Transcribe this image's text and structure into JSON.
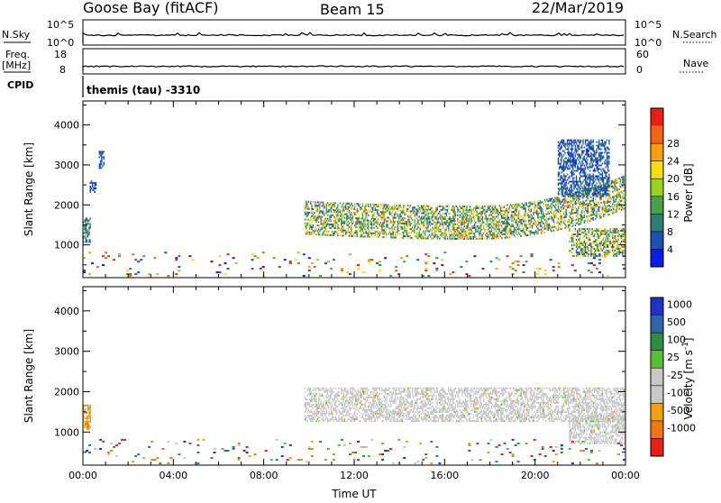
{
  "header": {
    "site": "Goose Bay (fitACF)",
    "beam": "Beam 15",
    "date": "22/Mar/2019"
  },
  "top_panels": {
    "nsky_label": "N.Sky",
    "nsky_ticks": [
      "10^5",
      "10^0"
    ],
    "nsearch_label": "N.Search",
    "nsearch_ticks": [
      "10^5",
      "10^0"
    ],
    "freq_label_1": "Freq.",
    "freq_label_2": "[MHz]",
    "freq_ticks": [
      "18",
      "8"
    ],
    "nave_label": "Nave",
    "nave_ticks": [
      "60",
      "0"
    ],
    "cpid_label": "CPID",
    "cpid_value": "themis (tau)  -3310"
  },
  "chart_data": [
    {
      "type": "heatmap",
      "panel": "power",
      "title": "",
      "xlabel": "",
      "ylabel": "Slant Range [km]",
      "x_unit": "hours UT",
      "xlim": [
        0,
        24
      ],
      "ylim": [
        180,
        4600
      ],
      "yticks": [
        1000,
        2000,
        3000,
        4000
      ],
      "colorbar": {
        "label": "Power [dB]",
        "ticks": [
          "4",
          "8",
          "12",
          "16",
          "20",
          "24",
          "28"
        ],
        "colors": [
          "#0a1ee6",
          "#1e50b4",
          "#2e7d6e",
          "#4aa04a",
          "#9ad21e",
          "#f5dc14",
          "#f5a014",
          "#f06414",
          "#e61e14"
        ]
      },
      "echo_regions": [
        {
          "t_start": 0.0,
          "t_end": 0.35,
          "r_min": 1050,
          "r_max": 1650,
          "level": "mid"
        },
        {
          "t_start": 0.3,
          "t_end": 0.55,
          "r_min": 2300,
          "r_max": 2600,
          "level": "low"
        },
        {
          "t_start": 0.7,
          "t_end": 0.95,
          "r_min": 2900,
          "r_max": 3350,
          "level": "low"
        },
        {
          "t_start": 9.8,
          "t_end": 24.0,
          "r_min": 1250,
          "r_max": 2100,
          "level": "high",
          "note": "main band"
        },
        {
          "t_start": 21.5,
          "t_end": 24.0,
          "r_min": 700,
          "r_max": 1400,
          "level": "high"
        },
        {
          "t_start": 21.0,
          "t_end": 23.3,
          "r_min": 2200,
          "r_max": 3600,
          "level": "low"
        },
        {
          "t_start": 0.0,
          "t_end": 24.0,
          "r_min": 200,
          "r_max": 800,
          "level": "sparse"
        }
      ]
    },
    {
      "type": "heatmap",
      "panel": "velocity",
      "title": "",
      "xlabel": "Time UT",
      "ylabel": "Slant Range [km]",
      "x_unit": "hours UT",
      "xlim": [
        0,
        24
      ],
      "ylim": [
        180,
        4600
      ],
      "yticks": [
        1000,
        2000,
        3000,
        4000
      ],
      "xticks": [
        "00:00",
        "04:00",
        "08:00",
        "12:00",
        "16:00",
        "20:00",
        "00:00"
      ],
      "colorbar": {
        "label": "Velocity [m s^-1]",
        "ticks": [
          "1000",
          "500",
          "100",
          "25",
          "-25",
          "-100",
          "-500",
          "-1000"
        ],
        "colors": [
          "#1e32c8",
          "#3264aa",
          "#2e8c46",
          "#5abe32",
          "#c8c8c8",
          "#c8c8c8",
          "#f5a014",
          "#f07814",
          "#e61e14"
        ]
      },
      "echo_regions": [
        {
          "t_start": 0.0,
          "t_end": 0.35,
          "r_min": 1050,
          "r_max": 1650,
          "vel": "negative"
        },
        {
          "t_start": 9.8,
          "t_end": 24.0,
          "r_min": 1250,
          "r_max": 2100,
          "vel": "ground"
        },
        {
          "t_start": 21.5,
          "t_end": 24.0,
          "r_min": 700,
          "r_max": 1400,
          "vel": "ground"
        },
        {
          "t_start": 0.0,
          "t_end": 24.0,
          "r_min": 200,
          "r_max": 800,
          "vel": "sparse"
        }
      ]
    }
  ]
}
